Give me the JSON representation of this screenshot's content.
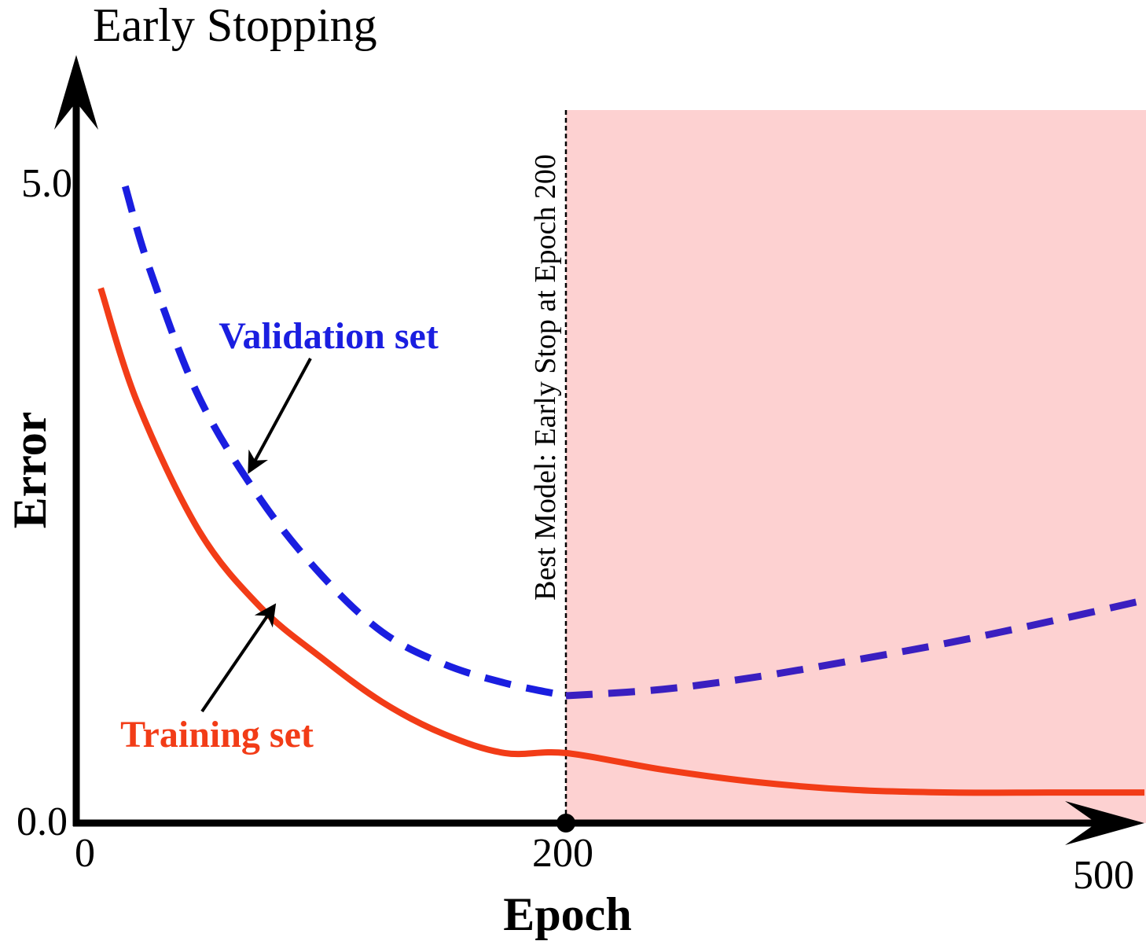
{
  "chart_data": {
    "type": "line",
    "title": "Early Stopping",
    "xlabel": "Epoch",
    "ylabel": "Error",
    "x_ticks": [
      "0",
      "200",
      "500"
    ],
    "y_ticks": [
      "5.0",
      "0.0"
    ],
    "xlim": [
      0,
      500
    ],
    "ylim": [
      0,
      5.0
    ],
    "grid": false,
    "series": [
      {
        "name": "Training set",
        "style": "solid",
        "color": "#f23c17",
        "x": [
          10,
          25,
          50,
          75,
          100,
          125,
          150,
          175,
          200,
          250,
          300,
          350,
          400,
          450,
          500
        ],
        "y": [
          4.2,
          3.3,
          2.3,
          1.7,
          1.3,
          0.95,
          0.7,
          0.55,
          0.55,
          0.42,
          0.32,
          0.26,
          0.24,
          0.24,
          0.24
        ]
      },
      {
        "name": "Validation set",
        "style": "dashed",
        "color": "#1a1ee0",
        "x": [
          20,
          30,
          50,
          75,
          100,
          125,
          150,
          175,
          200,
          250,
          300,
          350,
          400,
          450,
          500
        ],
        "y": [
          5.0,
          4.35,
          3.35,
          2.55,
          1.95,
          1.5,
          1.25,
          1.1,
          1.0,
          1.05,
          1.15,
          1.28,
          1.42,
          1.58,
          1.75
        ]
      }
    ],
    "annotation": {
      "text": "Best Model: Early Stop at Epoch 200",
      "x": 200
    },
    "shaded_region": {
      "x_from": 200,
      "x_to": 500,
      "color": "#fdd1d1"
    },
    "colors": {
      "axis": "#000000",
      "validation_label": "#1a1ee0",
      "training_label": "#f23c17",
      "validation_after_stop": "#3a1fc0"
    }
  }
}
